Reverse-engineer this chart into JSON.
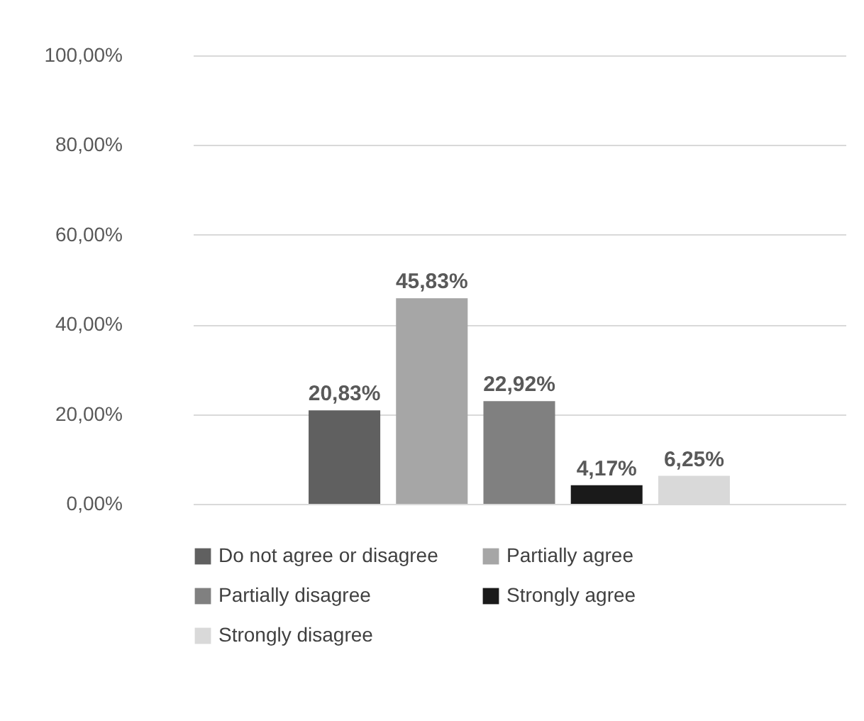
{
  "chart_data": {
    "type": "bar",
    "categories": [
      null
    ],
    "series": [
      {
        "name": "Do not agree or disagree",
        "color": "#606060",
        "values": [
          20.83
        ],
        "value_labels": [
          "20,83%"
        ]
      },
      {
        "name": "Partially agree",
        "color": "#a6a6a6",
        "values": [
          45.83
        ],
        "value_labels": [
          "45,83%"
        ]
      },
      {
        "name": "Partially disagree",
        "color": "#808080",
        "values": [
          22.92
        ],
        "value_labels": [
          "22,92%"
        ]
      },
      {
        "name": "Strongly agree",
        "color": "#1a1a1a",
        "values": [
          4.17
        ],
        "value_labels": [
          "4,17%"
        ]
      },
      {
        "name": "Strongly disagree",
        "color": "#d9d9d9",
        "values": [
          6.25
        ],
        "value_labels": [
          "6,25%"
        ]
      }
    ],
    "ylim": [
      0,
      100
    ],
    "yticks": [
      {
        "value": 0,
        "label": "0,00%"
      },
      {
        "value": 20,
        "label": "20,00%"
      },
      {
        "value": 40,
        "label": "40,00%"
      },
      {
        "value": 60,
        "label": "60,00%"
      },
      {
        "value": 80,
        "label": "80,00%"
      },
      {
        "value": 100,
        "label": "100,00%"
      }
    ],
    "grid": "y",
    "legend": "bottom"
  }
}
